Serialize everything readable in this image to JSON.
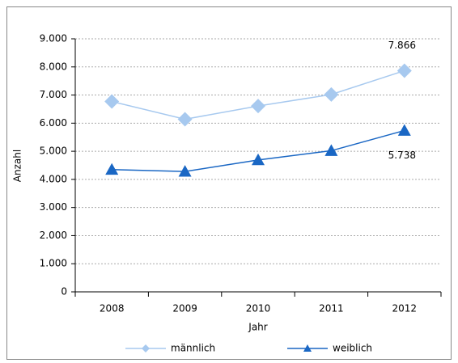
{
  "chart_data": {
    "type": "line",
    "y_label": "Anzahl",
    "x_label": "Jahr",
    "categories": [
      "2008",
      "2009",
      "2010",
      "2011",
      "2012"
    ],
    "series": [
      {
        "name": "männlich",
        "color": "#a7c9ef",
        "marker": "diamond",
        "values": [
          6770,
          6140,
          6610,
          7020,
          7866
        ],
        "value_labels": [
          null,
          null,
          null,
          null,
          "7.866"
        ]
      },
      {
        "name": "weiblich",
        "color": "#1a67c4",
        "marker": "triangle",
        "values": [
          4350,
          4280,
          4690,
          5020,
          5738
        ],
        "value_labels": [
          null,
          null,
          null,
          null,
          "5.738"
        ]
      }
    ],
    "ylim": [
      0,
      9000
    ],
    "yticks": [
      0,
      {
        "value": 1000,
        "label": "1.000"
      },
      {
        "value": 2000,
        "label": "2.000"
      },
      {
        "value": 3000,
        "label": "3.000"
      },
      {
        "value": 4000,
        "label": "4.000"
      },
      {
        "value": 5000,
        "label": "5.000"
      },
      {
        "value": 6000,
        "label": "6.000"
      },
      {
        "value": 7000,
        "label": "7.000"
      },
      {
        "value": 8000,
        "label": "8.000"
      },
      {
        "value": 9000,
        "label": "9.000"
      }
    ],
    "grid": true,
    "legend": "bottom"
  }
}
